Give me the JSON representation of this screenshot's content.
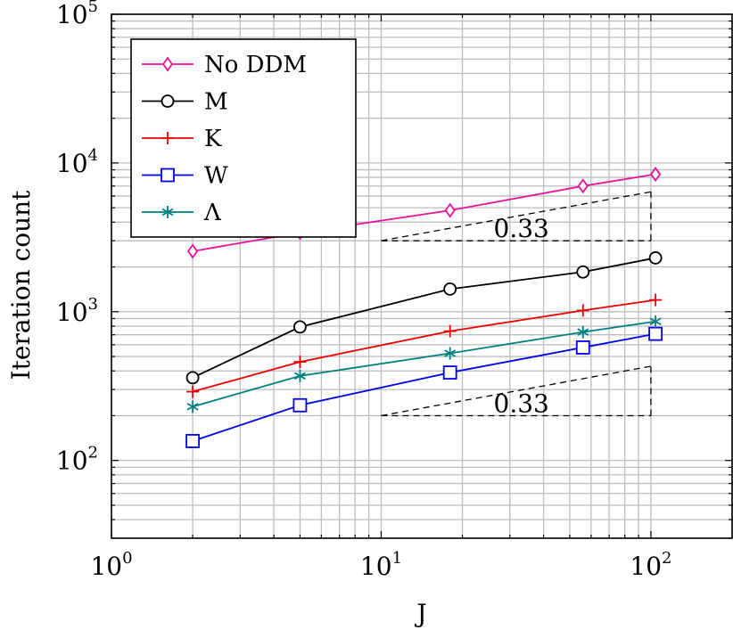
{
  "chart_data": {
    "type": "line",
    "xscale": "log",
    "yscale": "log",
    "xlim": [
      1,
      200
    ],
    "ylim": [
      30,
      100000
    ],
    "xlabel": "J",
    "ylabel": "Iteration count",
    "x_ticks": [
      {
        "base": "10",
        "exp": "0",
        "value": 1
      },
      {
        "base": "10",
        "exp": "1",
        "value": 10
      },
      {
        "base": "10",
        "exp": "2",
        "value": 100
      }
    ],
    "y_ticks": [
      {
        "base": "10",
        "exp": "2",
        "value": 100
      },
      {
        "base": "10",
        "exp": "3",
        "value": 1000
      },
      {
        "base": "10",
        "exp": "4",
        "value": 10000
      },
      {
        "base": "10",
        "exp": "5",
        "value": 100000
      }
    ],
    "grid": true,
    "legend_position": "top-left",
    "x": [
      2,
      5,
      18,
      56,
      104
    ],
    "series": [
      {
        "name": "No DDM",
        "color": "#e6119b",
        "marker": "diamond",
        "values": [
          2550,
          3400,
          4800,
          7000,
          8400
        ]
      },
      {
        "name": "M",
        "color": "#000000",
        "marker": "circle",
        "values": [
          360,
          790,
          1420,
          1850,
          2300
        ]
      },
      {
        "name": "K",
        "color": "#ee0000",
        "marker": "plus",
        "values": [
          290,
          460,
          740,
          1020,
          1200
        ]
      },
      {
        "name": "W",
        "color": "#0000ee",
        "marker": "square",
        "values": [
          135,
          235,
          390,
          575,
          710
        ]
      },
      {
        "name": "Λ",
        "color": "#008080",
        "marker": "asterisk",
        "values": [
          230,
          370,
          525,
          730,
          860
        ]
      }
    ],
    "slope_triangles": [
      {
        "label": "0.33",
        "x_start": 10,
        "x_end": 100,
        "y_base": 3000,
        "y_top": 6400
      },
      {
        "label": "0.33",
        "x_start": 10,
        "x_end": 100,
        "y_base": 200,
        "y_top": 430
      }
    ]
  }
}
